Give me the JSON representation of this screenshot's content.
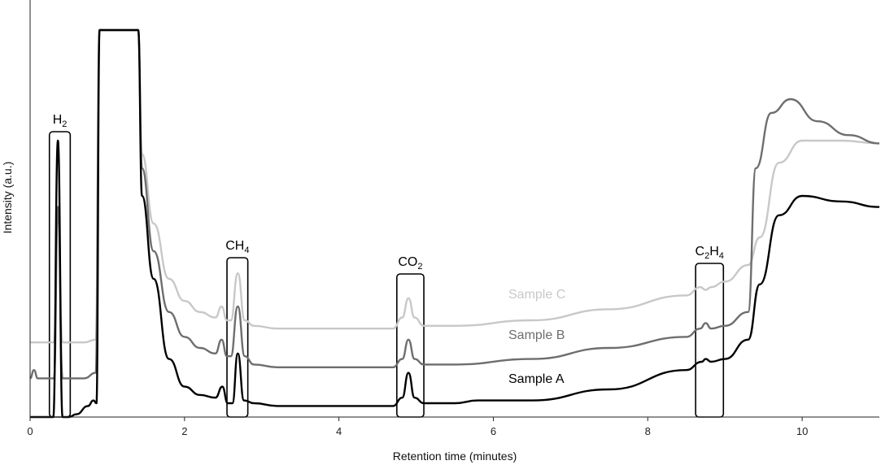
{
  "chart_data": {
    "type": "line",
    "title": "",
    "xlabel": "Retention time (minutes)",
    "ylabel": "Intensity (a.u.)",
    "xlim": [
      0,
      11
    ],
    "x_ticks": [
      "0",
      "2",
      "4",
      "6",
      "8",
      "10"
    ],
    "grid": false,
    "legend": "inline labels near curves, centre-right",
    "peak_labels": [
      {
        "main": "H",
        "sub": "2",
        "x_range": [
          0.25,
          0.52
        ]
      },
      {
        "main": "CH",
        "sub": "4",
        "x_range": [
          2.55,
          2.82
        ]
      },
      {
        "main": "CO",
        "sub": "2",
        "x_range": [
          4.75,
          5.1
        ]
      },
      {
        "main": "C",
        "sub": "2",
        "main2": "H",
        "sub2": "4",
        "x_range": [
          8.62,
          8.98
        ]
      }
    ],
    "series": [
      {
        "name": "Sample C",
        "color": "#c8c8c8",
        "x": [
          0.0,
          0.2,
          0.31,
          0.36,
          0.42,
          0.5,
          0.7,
          0.85,
          0.9,
          1.4,
          1.45,
          1.6,
          1.8,
          2.0,
          2.2,
          2.4,
          2.48,
          2.55,
          2.6,
          2.69,
          2.78,
          2.9,
          3.2,
          4.0,
          4.7,
          4.82,
          4.9,
          4.98,
          5.1,
          5.5,
          6.5,
          7.5,
          8.5,
          8.68,
          8.75,
          8.82,
          9.0,
          9.3,
          9.45,
          9.7,
          10.0,
          10.5,
          11.0
        ],
        "y": [
          0.27,
          0.27,
          0.27,
          0.76,
          0.27,
          0.27,
          0.27,
          0.28,
          1.4,
          1.4,
          0.95,
          0.7,
          0.5,
          0.42,
          0.38,
          0.36,
          0.4,
          0.35,
          0.35,
          0.52,
          0.35,
          0.33,
          0.32,
          0.32,
          0.32,
          0.36,
          0.43,
          0.36,
          0.33,
          0.33,
          0.35,
          0.39,
          0.44,
          0.47,
          0.46,
          0.47,
          0.49,
          0.55,
          0.65,
          0.92,
          1.0,
          1.0,
          0.99
        ]
      },
      {
        "name": "Sample B",
        "color": "#6e6e6e",
        "x": [
          0.0,
          0.05,
          0.1,
          0.2,
          0.31,
          0.36,
          0.42,
          0.5,
          0.7,
          0.85,
          0.9,
          1.4,
          1.45,
          1.6,
          1.8,
          2.0,
          2.2,
          2.4,
          2.48,
          2.55,
          2.6,
          2.69,
          2.78,
          2.9,
          3.2,
          4.0,
          4.7,
          4.82,
          4.9,
          4.98,
          5.1,
          5.5,
          6.5,
          7.5,
          8.5,
          8.68,
          8.75,
          8.82,
          9.0,
          9.3,
          9.4,
          9.6,
          9.85,
          10.2,
          10.6,
          11.0
        ],
        "y": [
          0.14,
          0.17,
          0.14,
          0.14,
          0.14,
          0.76,
          0.14,
          0.14,
          0.14,
          0.16,
          1.4,
          1.4,
          0.9,
          0.6,
          0.38,
          0.29,
          0.25,
          0.23,
          0.28,
          0.22,
          0.22,
          0.4,
          0.22,
          0.19,
          0.18,
          0.18,
          0.18,
          0.21,
          0.28,
          0.21,
          0.19,
          0.19,
          0.21,
          0.25,
          0.29,
          0.32,
          0.34,
          0.32,
          0.33,
          0.38,
          0.9,
          1.1,
          1.15,
          1.07,
          1.02,
          0.99
        ]
      },
      {
        "name": "Sample A",
        "color": "#000000",
        "x": [
          0.0,
          0.2,
          0.3,
          0.36,
          0.42,
          0.5,
          0.6,
          0.75,
          0.82,
          0.86,
          0.9,
          1.4,
          1.45,
          1.6,
          1.8,
          2.0,
          2.2,
          2.4,
          2.49,
          2.56,
          2.62,
          2.69,
          2.77,
          2.9,
          3.2,
          4.0,
          4.7,
          4.82,
          4.9,
          4.98,
          5.1,
          5.5,
          5.8,
          6.5,
          7.5,
          8.5,
          8.7,
          8.75,
          8.82,
          9.0,
          9.3,
          9.45,
          9.7,
          10.0,
          10.5,
          11.0
        ],
        "y": [
          0.0,
          0.0,
          0.0,
          1.0,
          0.0,
          0.0,
          0.01,
          0.04,
          0.06,
          0.05,
          1.4,
          1.4,
          0.8,
          0.5,
          0.21,
          0.11,
          0.08,
          0.07,
          0.11,
          0.05,
          0.05,
          0.23,
          0.06,
          0.05,
          0.04,
          0.04,
          0.04,
          0.07,
          0.16,
          0.07,
          0.05,
          0.05,
          0.06,
          0.06,
          0.1,
          0.17,
          0.2,
          0.21,
          0.2,
          0.21,
          0.28,
          0.48,
          0.73,
          0.8,
          0.78,
          0.76
        ]
      }
    ]
  }
}
